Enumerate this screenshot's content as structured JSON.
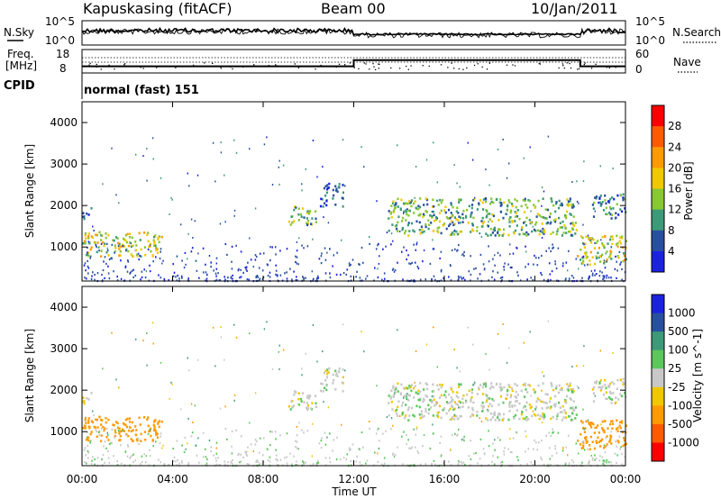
{
  "header": {
    "station": "Kapuskasing (fitACF)",
    "beam": "Beam 00",
    "date": "10/Jan/2011"
  },
  "noise_panel": {
    "left_label": "N.Sky",
    "right_label": "N.Search",
    "left_ticks": [
      "10^5",
      "10^0"
    ],
    "right_ticks": [
      "10^5",
      "10^0"
    ]
  },
  "freq_panel": {
    "left_label_line1": "Freq.",
    "left_label_line2": "[MHz]",
    "left_ticks": [
      "18",
      "8"
    ],
    "right_label": "Nave",
    "right_ticks": [
      "60",
      "0"
    ]
  },
  "cpid": {
    "label": "CPID",
    "value": "normal (fast) 151"
  },
  "power_panel": {
    "ylabel": "Slant Range [km]",
    "yticks": [
      "4000",
      "3000",
      "2000",
      "1000"
    ],
    "colorbar_label": "Power [dB]",
    "colorbar_ticks": [
      "28",
      "24",
      "20",
      "16",
      "12",
      "8",
      "4"
    ],
    "colorbar_colors": [
      "#ff0000",
      "#ff5a00",
      "#ff9a00",
      "#f0c800",
      "#88c830",
      "#3c9a78",
      "#2850a0",
      "#1a22e0"
    ]
  },
  "velocity_panel": {
    "ylabel": "Slant Range [km]",
    "yticks": [
      "4000",
      "3000",
      "2000",
      "1000"
    ],
    "colorbar_label": "Velocity [m s^-1]",
    "colorbar_ticks": [
      "1000",
      "500",
      "100",
      "25",
      "-25",
      "-100",
      "-500",
      "-1000"
    ],
    "colorbar_colors": [
      "#1a22e0",
      "#2850a0",
      "#3c9a78",
      "#5ac85a",
      "#c8c8c8",
      "#f0c800",
      "#ff9a00",
      "#ff5a00",
      "#ff0000"
    ]
  },
  "xaxis": {
    "label": "Time UT",
    "ticks": [
      "00:00",
      "04:00",
      "08:00",
      "12:00",
      "16:00",
      "20:00",
      "00:00"
    ]
  },
  "chart_data": {
    "type": "heatmap",
    "title": "Kapuskasing (fitACF)  Beam 00  10/Jan/2011",
    "xlabel": "Time UT",
    "ylabel": "Slant Range [km]",
    "x_range_hours": [
      0,
      24
    ],
    "y_range_km": [
      180,
      4500
    ],
    "frequency_mhz_steps": [
      {
        "from": "00:00",
        "to": "12:00",
        "value": 10
      },
      {
        "from": "12:00",
        "to": "22:00",
        "value": 14
      },
      {
        "from": "22:00",
        "to": "24:00",
        "value": 10
      }
    ],
    "echo_regions": [
      {
        "name": "morning near-range",
        "t_start_h": 0.0,
        "t_end_h": 3.5,
        "range_km": [
          800,
          1400
        ],
        "power_db": 16,
        "velocity_ms": -300
      },
      {
        "name": "0-1 UT patch",
        "t_start_h": 0.0,
        "t_end_h": 0.4,
        "range_km": [
          1700,
          2000
        ],
        "power_db": 8,
        "velocity_ms": -25
      },
      {
        "name": "09-10 UT patch",
        "t_start_h": 9.0,
        "t_end_h": 10.3,
        "range_km": [
          1550,
          2000
        ],
        "power_db": 12,
        "velocity_ms": 0
      },
      {
        "name": "10-11 UT rising band",
        "t_start_h": 10.5,
        "t_end_h": 11.5,
        "range_km": [
          2000,
          2600
        ],
        "power_db": 6,
        "velocity_ms": 0
      },
      {
        "name": "evening band",
        "t_start_h": 13.5,
        "t_end_h": 21.8,
        "range_km": [
          1300,
          2200
        ],
        "power_db": 12,
        "velocity_ms": 0
      },
      {
        "name": "late near-range",
        "t_start_h": 21.8,
        "t_end_h": 24.0,
        "range_km": [
          600,
          1300
        ],
        "power_db": 16,
        "velocity_ms": -200
      },
      {
        "name": "late far band",
        "t_start_h": 22.5,
        "t_end_h": 24.0,
        "range_km": [
          1700,
          2300
        ],
        "power_db": 8,
        "velocity_ms": 0
      }
    ]
  }
}
